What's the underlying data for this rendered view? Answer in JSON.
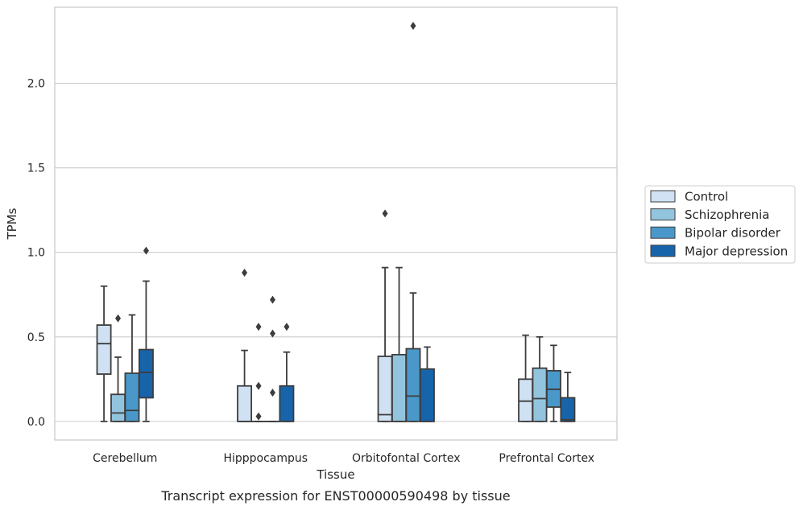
{
  "caption": "Transcript expression for ENST00000590498 by tissue",
  "chart_data": {
    "type": "boxplot",
    "xlabel": "Tissue",
    "ylabel": "TPMs",
    "ylim": [
      -0.11,
      2.45
    ],
    "yticks": [
      0.0,
      0.5,
      1.0,
      1.5,
      2.0
    ],
    "ytick_labels": [
      "0.0",
      "0.5",
      "1.0",
      "1.5",
      "2.0"
    ],
    "grid": "horizontal",
    "legend_position": "right",
    "categories": [
      "Cerebellum",
      "Hipppocampus",
      "Orbitofontal Cortex",
      "Prefrontal Cortex"
    ],
    "series": [
      {
        "name": "Control",
        "color": "#cfe1f2",
        "boxes": [
          {
            "whislo": 0.0,
            "q1": 0.28,
            "med": 0.46,
            "q3": 0.57,
            "whishi": 0.8,
            "fliers": []
          },
          {
            "whislo": 0.0,
            "q1": 0.0,
            "med": 0.0,
            "q3": 0.21,
            "whishi": 0.42,
            "fliers": [
              0.88
            ]
          },
          {
            "whislo": 0.0,
            "q1": 0.0,
            "med": 0.04,
            "q3": 0.385,
            "whishi": 0.91,
            "fliers": [
              1.23
            ]
          },
          {
            "whislo": 0.0,
            "q1": 0.0,
            "med": 0.12,
            "q3": 0.25,
            "whishi": 0.51,
            "fliers": []
          }
        ]
      },
      {
        "name": "Schizophrenia",
        "color": "#93c4de",
        "boxes": [
          {
            "whislo": 0.0,
            "q1": 0.0,
            "med": 0.05,
            "q3": 0.16,
            "whishi": 0.38,
            "fliers": [
              0.61
            ]
          },
          {
            "whislo": 0.0,
            "q1": 0.0,
            "med": 0.0,
            "q3": 0.0,
            "whishi": 0.0,
            "fliers": [
              0.03,
              0.21,
              0.56
            ]
          },
          {
            "whislo": 0.0,
            "q1": 0.0,
            "med": 0.0,
            "q3": 0.395,
            "whishi": 0.91,
            "fliers": []
          },
          {
            "whislo": 0.0,
            "q1": 0.0,
            "med": 0.135,
            "q3": 0.315,
            "whishi": 0.5,
            "fliers": []
          }
        ]
      },
      {
        "name": "Bipolar disorder",
        "color": "#4a98c9",
        "boxes": [
          {
            "whislo": 0.0,
            "q1": 0.0,
            "med": 0.065,
            "q3": 0.285,
            "whishi": 0.63,
            "fliers": []
          },
          {
            "whislo": 0.0,
            "q1": 0.0,
            "med": 0.0,
            "q3": 0.0,
            "whishi": 0.0,
            "fliers": [
              0.17,
              0.52,
              0.72
            ]
          },
          {
            "whislo": 0.0,
            "q1": 0.0,
            "med": 0.15,
            "q3": 0.43,
            "whishi": 0.76,
            "fliers": [
              2.34
            ]
          },
          {
            "whislo": 0.0,
            "q1": 0.085,
            "med": 0.19,
            "q3": 0.3,
            "whishi": 0.45,
            "fliers": []
          }
        ]
      },
      {
        "name": "Major depression",
        "color": "#1764ab",
        "boxes": [
          {
            "whislo": 0.0,
            "q1": 0.14,
            "med": 0.29,
            "q3": 0.425,
            "whishi": 0.83,
            "fliers": [
              1.01
            ]
          },
          {
            "whislo": 0.0,
            "q1": 0.0,
            "med": 0.0,
            "q3": 0.21,
            "whishi": 0.41,
            "fliers": [
              0.56
            ]
          },
          {
            "whislo": 0.0,
            "q1": 0.0,
            "med": 0.0,
            "q3": 0.31,
            "whishi": 0.44,
            "fliers": []
          },
          {
            "whislo": 0.0,
            "q1": 0.0,
            "med": 0.01,
            "q3": 0.14,
            "whishi": 0.29,
            "fliers": []
          }
        ]
      }
    ]
  }
}
